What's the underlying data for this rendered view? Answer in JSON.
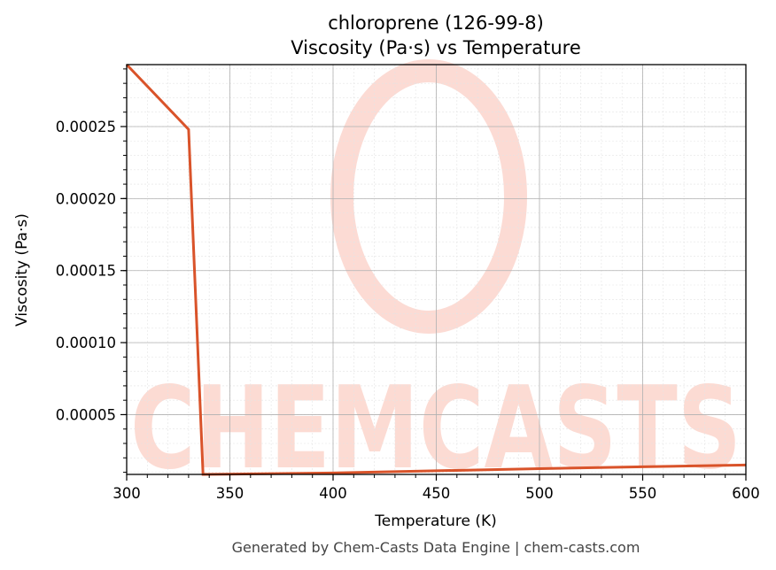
{
  "chart_data": {
    "type": "line",
    "title": "chloroprene (126-99-8)",
    "subtitle": "Viscosity (Pa·s) vs Temperature",
    "xlabel": "Temperature (K)",
    "ylabel": "Viscosity (Pa·s)",
    "xlim": [
      300,
      600
    ],
    "ylim": [
      8.5e-06,
      0.000293
    ],
    "x_ticks": [
      300,
      350,
      400,
      450,
      500,
      550,
      600
    ],
    "x_tick_labels": [
      "300",
      "350",
      "400",
      "450",
      "500",
      "550",
      "600"
    ],
    "y_ticks": [
      5e-05,
      0.0001,
      0.00015,
      0.0002,
      0.00025
    ],
    "y_tick_labels": [
      "0.00005",
      "0.00010",
      "0.00015",
      "0.00020",
      "0.00025"
    ],
    "grid": true,
    "series": [
      {
        "color": "#d9532a",
        "x": [
          300,
          330,
          337,
          400,
          450,
          500,
          550,
          600
        ],
        "y": [
          0.000293,
          0.000248,
          8.5e-06,
          9.5e-06,
          1.1e-05,
          1.25e-05,
          1.38e-05,
          1.5e-05
        ]
      }
    ]
  },
  "watermark": {
    "text": "CHEMCASTS",
    "color": "#fcd5cc"
  },
  "footer": {
    "text": "Generated by Chem-Casts Data Engine | chem-casts.com"
  }
}
